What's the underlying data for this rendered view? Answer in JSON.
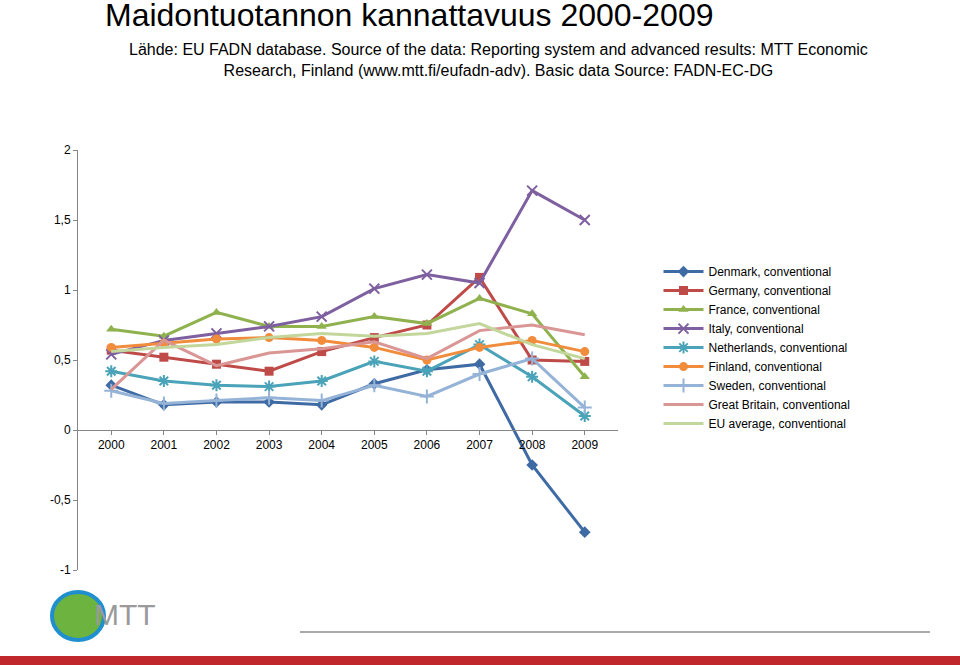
{
  "chart_data": {
    "type": "line",
    "title": "Maidontuotannon kannattavuus 2000-2009",
    "subtitle": [
      "Lähde: EU FADN database. Source of the data: Reporting system and advanced results: MTT Economic",
      "Research, Finland (www.mtt.fi/eufadn-adv). Basic data Source: FADN-EC-DG"
    ],
    "logo": "MTT",
    "categories": [
      "2000",
      "2001",
      "2002",
      "2003",
      "2004",
      "2005",
      "2006",
      "2007",
      "2008",
      "2009"
    ],
    "ylim": [
      -1,
      2
    ],
    "yticks": [
      -1,
      {
        "value": -0.5,
        "label": "-0,5"
      },
      0,
      {
        "value": 0.5,
        "label": "0,5"
      },
      1,
      {
        "value": 1.5,
        "label": "1,5"
      },
      2
    ],
    "grid": false,
    "legend": "right",
    "series": [
      {
        "name": "Denmark, conventional",
        "color": "#3f6ba5",
        "marker": "diamond",
        "values": [
          0.32,
          0.18,
          0.2,
          0.2,
          0.18,
          0.33,
          0.43,
          0.47,
          -0.25,
          -0.73
        ]
      },
      {
        "name": "Germany, conventional",
        "color": "#be4b48",
        "marker": "square",
        "values": [
          0.57,
          0.52,
          0.47,
          0.42,
          0.56,
          0.66,
          0.75,
          1.09,
          0.5,
          0.49
        ]
      },
      {
        "name": "France, conventional",
        "color": "#8fb24f",
        "marker": "triangle",
        "values": [
          0.72,
          0.67,
          0.84,
          0.74,
          0.74,
          0.81,
          0.76,
          0.94,
          0.83,
          0.38
        ]
      },
      {
        "name": "Italy, conventional",
        "color": "#7e5f9f",
        "marker": "x",
        "values": [
          0.54,
          0.64,
          0.69,
          0.74,
          0.81,
          1.01,
          1.11,
          1.05,
          1.71,
          1.5
        ]
      },
      {
        "name": "Netherlands, conventional",
        "color": "#4aa3b8",
        "marker": "asterisk",
        "values": [
          0.42,
          0.35,
          0.32,
          0.31,
          0.35,
          0.49,
          0.42,
          0.61,
          0.38,
          0.1
        ]
      },
      {
        "name": "Finland, conventional",
        "color": "#f08c3c",
        "marker": "circle",
        "values": [
          0.59,
          0.62,
          0.65,
          0.66,
          0.64,
          0.59,
          0.5,
          0.59,
          0.64,
          0.56
        ]
      },
      {
        "name": "Sweden, conventional",
        "color": "#95b3d7",
        "marker": "cross",
        "values": [
          0.28,
          0.19,
          0.21,
          0.23,
          0.21,
          0.32,
          0.24,
          0.4,
          0.51,
          0.16
        ]
      },
      {
        "name": "Great Britain, conventional",
        "color": "#d99694",
        "marker": "none",
        "values": [
          0.29,
          0.64,
          0.46,
          0.55,
          0.58,
          0.63,
          0.51,
          0.71,
          0.75,
          0.68
        ]
      },
      {
        "name": "EU average, conventional",
        "color": "#c3d69b",
        "marker": "none",
        "values": [
          0.56,
          0.59,
          0.61,
          0.66,
          0.69,
          0.67,
          0.69,
          0.76,
          0.61,
          0.51
        ]
      }
    ]
  }
}
